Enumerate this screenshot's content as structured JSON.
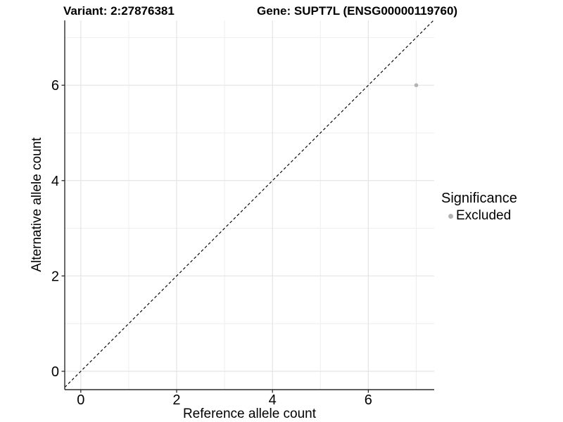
{
  "header": {
    "variant_title": "Variant: 2:27876381",
    "gene_title": "Gene: SUPT7L (ENSG00000119760)"
  },
  "chart_data": {
    "type": "scatter",
    "xlabel": "Reference allele count",
    "ylabel": "Alternative allele count",
    "xlim": [
      -0.335,
      7.375
    ],
    "ylim": [
      -0.385,
      7.36
    ],
    "x_major_ticks": [
      0,
      2,
      4,
      6
    ],
    "x_minor_ticks": [
      1,
      3,
      5,
      7
    ],
    "y_major_ticks": [
      0,
      2,
      4,
      6
    ],
    "y_minor_ticks": [
      1,
      3,
      5,
      7
    ],
    "grid": true,
    "points": [
      {
        "x": 7,
        "y": 6,
        "series": "Excluded"
      }
    ],
    "identity_line": {
      "slope": 1,
      "intercept": 0,
      "style": "dashed"
    },
    "legend": {
      "position": "right",
      "title": "Significance",
      "items": [
        {
          "label": "Excluded",
          "color": "#b3b3b3"
        }
      ]
    },
    "colors": {
      "point": "#b3b3b3",
      "grid_major": "#e4e4e4",
      "grid_minor": "#eeeeee",
      "axis_line": "#2b2b2b",
      "text": "#000000",
      "identity_line": "#000000",
      "background": "#ffffff"
    }
  }
}
